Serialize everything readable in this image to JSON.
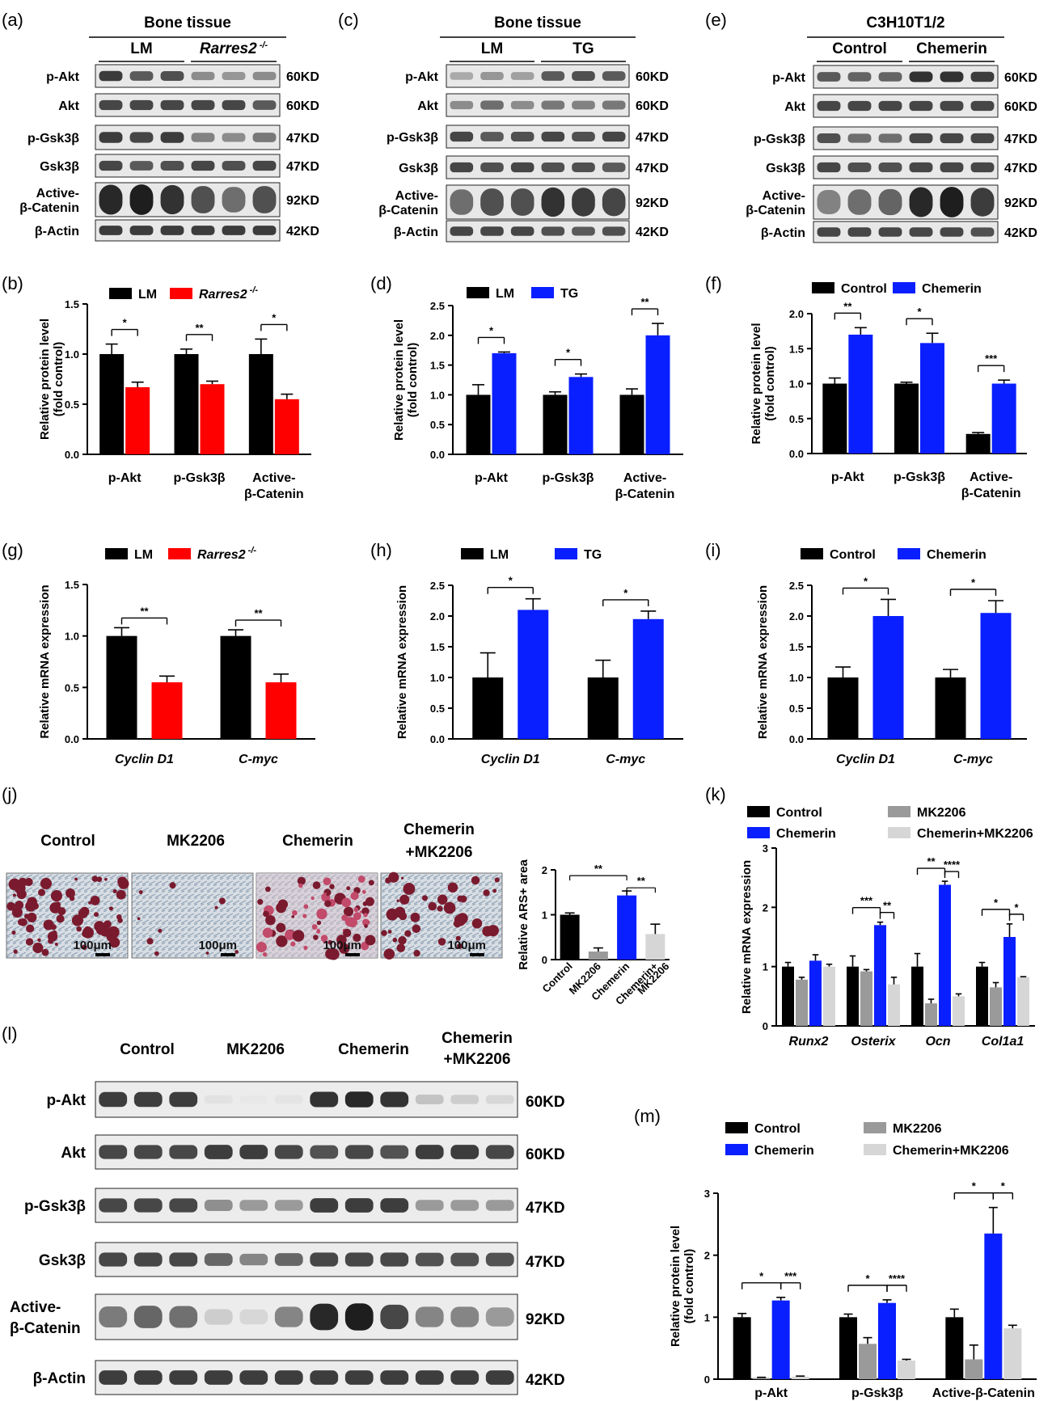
{
  "panels": {
    "a": {
      "letter": "(a)",
      "header": "Bone tissue",
      "groups": [
        "LM",
        "Rarres2 -/-"
      ],
      "rows": [
        "p-Akt",
        "Akt",
        "p-Gsk3β",
        "Gsk3β",
        "Active-β-Catenin",
        "β-Actin"
      ],
      "sizes": [
        "60KD",
        "60KD",
        "47KD",
        "47KD",
        "92KD",
        "42KD"
      ]
    },
    "c": {
      "letter": "(c)",
      "header": "Bone tissue",
      "groups": [
        "LM",
        "TG"
      ],
      "rows": [
        "p-Akt",
        "Akt",
        "p-Gsk3β",
        "Gsk3β",
        "Active-β-Catenin",
        "β-Actin"
      ],
      "sizes": [
        "60KD",
        "60KD",
        "47KD",
        "47KD",
        "92KD",
        "42KD"
      ]
    },
    "e": {
      "letter": "(e)",
      "header": "C3H10T1/2",
      "groups": [
        "Control",
        "Chemerin"
      ],
      "rows": [
        "p-Akt",
        "Akt",
        "p-Gsk3β",
        "Gsk3β",
        "Active-β-Catenin",
        "β-Actin"
      ],
      "sizes": [
        "60KD",
        "60KD",
        "47KD",
        "47KD",
        "92KD",
        "42KD"
      ]
    },
    "j": {
      "letter": "(j)",
      "conditions": [
        "Control",
        "MK2206",
        "Chemerin",
        "Chemerin +MK2206"
      ],
      "scale_bar": "100μm"
    },
    "l": {
      "letter": "(l)",
      "conditions": [
        "Control",
        "MK2206",
        "Chemerin",
        "Chemerin +MK2206"
      ],
      "rows": [
        "p-Akt",
        "Akt",
        "p-Gsk3β",
        "Gsk3β",
        "Active-β-Catenin",
        "β-Actin"
      ],
      "sizes": [
        "60KD",
        "60KD",
        "47KD",
        "47KD",
        "92KD",
        "42KD"
      ]
    }
  },
  "colors": {
    "black": "#000000",
    "red": "#ff0000",
    "blue": "#0a1fff",
    "gray": "#9a9a9a",
    "lightgray": "#d6d6d6"
  },
  "chart_data": [
    {
      "id": "b",
      "letter": "(b)",
      "type": "bar",
      "ylabel": "Relative protein level (fold control)",
      "ylim": [
        0,
        1.5
      ],
      "ticks": [
        0.0,
        0.5,
        1.0,
        1.5
      ],
      "categories": [
        "p-Akt",
        "p-Gsk3β",
        "Active-β-Catenin"
      ],
      "series": [
        {
          "name": "LM",
          "color": "#000000",
          "values": [
            1.0,
            1.0,
            1.0
          ],
          "errors": [
            0.1,
            0.05,
            0.15
          ]
        },
        {
          "name": "Rarres2 -/-",
          "color": "#ff0000",
          "values": [
            0.67,
            0.7,
            0.55
          ],
          "errors": [
            0.05,
            0.03,
            0.05
          ]
        }
      ],
      "significance": [
        "*",
        "**",
        "*"
      ]
    },
    {
      "id": "d",
      "letter": "(d)",
      "type": "bar",
      "ylabel": "Relative protein level (fold control)",
      "ylim": [
        0,
        2.5
      ],
      "ticks": [
        0.0,
        0.5,
        1.0,
        1.5,
        2.0,
        2.5
      ],
      "categories": [
        "p-Akt",
        "p-Gsk3β",
        "Active-β-Catenin"
      ],
      "series": [
        {
          "name": "LM",
          "color": "#000000",
          "values": [
            1.0,
            1.0,
            1.0
          ],
          "errors": [
            0.17,
            0.05,
            0.1
          ]
        },
        {
          "name": "TG",
          "color": "#0a1fff",
          "values": [
            1.7,
            1.3,
            2.0
          ],
          "errors": [
            0.02,
            0.05,
            0.2
          ]
        }
      ],
      "significance": [
        "*",
        "*",
        "**"
      ]
    },
    {
      "id": "f",
      "letter": "(f)",
      "type": "bar",
      "ylabel": "Relative protein level (fold control)",
      "ylim": [
        0,
        2.0
      ],
      "ticks": [
        0.0,
        0.5,
        1.0,
        1.5,
        2.0
      ],
      "categories": [
        "p-Akt",
        "p-Gsk3β",
        "Active-β-Catenin"
      ],
      "series": [
        {
          "name": "Control",
          "color": "#000000",
          "values": [
            1.0,
            1.0,
            0.28
          ],
          "errors": [
            0.08,
            0.02,
            0.02
          ]
        },
        {
          "name": "Chemerin",
          "color": "#0a1fff",
          "values": [
            1.7,
            1.58,
            1.0
          ],
          "errors": [
            0.1,
            0.14,
            0.05
          ]
        }
      ],
      "significance": [
        "**",
        "*",
        "***"
      ]
    },
    {
      "id": "g",
      "letter": "(g)",
      "type": "bar",
      "ylabel": "Relative mRNA expression",
      "ylim": [
        0,
        1.5
      ],
      "ticks": [
        0.0,
        0.5,
        1.0,
        1.5
      ],
      "categories": [
        "Cyclin D1",
        "C-myc"
      ],
      "series": [
        {
          "name": "LM",
          "color": "#000000",
          "values": [
            1.0,
            1.0
          ],
          "errors": [
            0.08,
            0.06
          ]
        },
        {
          "name": "Rarres2 -/-",
          "color": "#ff0000",
          "values": [
            0.55,
            0.55
          ],
          "errors": [
            0.06,
            0.08
          ]
        }
      ],
      "significance": [
        "**",
        "**"
      ]
    },
    {
      "id": "h",
      "letter": "(h)",
      "type": "bar",
      "ylabel": "Relative mRNA expression",
      "ylim": [
        0,
        2.5
      ],
      "ticks": [
        0.0,
        0.5,
        1.0,
        1.5,
        2.0,
        2.5
      ],
      "categories": [
        "Cyclin D1",
        "C-myc"
      ],
      "series": [
        {
          "name": "LM",
          "color": "#000000",
          "values": [
            1.0,
            1.0
          ],
          "errors": [
            0.4,
            0.28
          ]
        },
        {
          "name": "TG",
          "color": "#0a1fff",
          "values": [
            2.1,
            1.95
          ],
          "errors": [
            0.18,
            0.13
          ]
        }
      ],
      "significance": [
        "*",
        "*"
      ]
    },
    {
      "id": "i",
      "letter": "(i)",
      "type": "bar",
      "ylabel": "Relative mRNA expression",
      "ylim": [
        0,
        2.5
      ],
      "ticks": [
        0.0,
        0.5,
        1.0,
        1.5,
        2.0,
        2.5
      ],
      "categories": [
        "Cyclin D1",
        "C-myc"
      ],
      "series": [
        {
          "name": "Control",
          "color": "#000000",
          "values": [
            1.0,
            1.0
          ],
          "errors": [
            0.17,
            0.13
          ]
        },
        {
          "name": "Chemerin",
          "color": "#0a1fff",
          "values": [
            2.0,
            2.05
          ],
          "errors": [
            0.27,
            0.2
          ]
        }
      ],
      "significance": [
        "*",
        "*"
      ]
    },
    {
      "id": "j_chart",
      "type": "bar",
      "ylabel": "Relative ARS+ area",
      "ylim": [
        0,
        2.0
      ],
      "ticks": [
        0,
        1,
        2
      ],
      "categories": [
        "Control",
        "MK2206",
        "Chemerin",
        "Chemerin+ MK2206"
      ],
      "series": [
        {
          "name": "ARS+ area",
          "colors": [
            "#000000",
            "#9a9a9a",
            "#0a1fff",
            "#d6d6d6"
          ],
          "values": [
            1.0,
            0.18,
            1.43,
            0.57
          ],
          "errors": [
            0.04,
            0.08,
            0.1,
            0.22
          ]
        }
      ],
      "significance": [
        "**",
        "**"
      ]
    },
    {
      "id": "k",
      "letter": "(k)",
      "type": "bar",
      "ylabel": "Relative mRNA expression",
      "ylim": [
        0,
        3
      ],
      "ticks": [
        0,
        1,
        2,
        3
      ],
      "categories": [
        "Runx2",
        "Osterix",
        "Ocn",
        "Col1a1"
      ],
      "series": [
        {
          "name": "Control",
          "color": "#000000",
          "values": [
            1.0,
            1.0,
            1.0,
            1.0
          ],
          "errors": [
            0.07,
            0.18,
            0.22,
            0.07
          ]
        },
        {
          "name": "MK2206",
          "color": "#9a9a9a",
          "values": [
            0.78,
            0.92,
            0.38,
            0.65
          ],
          "errors": [
            0.04,
            0.03,
            0.07,
            0.08
          ]
        },
        {
          "name": "Chemerin",
          "color": "#0a1fff",
          "values": [
            1.1,
            1.7,
            2.38,
            1.5
          ],
          "errors": [
            0.1,
            0.05,
            0.06,
            0.22
          ]
        },
        {
          "name": "Chemerin+MK2206",
          "color": "#d6d6d6",
          "values": [
            1.0,
            0.7,
            0.5,
            0.82
          ],
          "errors": [
            0.04,
            0.12,
            0.04,
            0.01
          ]
        }
      ],
      "significance": [
        "***",
        "**",
        "**",
        "****",
        "*",
        "*"
      ]
    },
    {
      "id": "m",
      "letter": "(m)",
      "type": "bar",
      "ylabel": "Relative protein level (fold control)",
      "ylim": [
        0,
        3
      ],
      "ticks": [
        0,
        1,
        2,
        3
      ],
      "categories": [
        "p-Akt",
        "p-Gsk3β",
        "Active-β-Catenin"
      ],
      "series": [
        {
          "name": "Control",
          "color": "#000000",
          "values": [
            1.0,
            1.0,
            1.0
          ],
          "errors": [
            0.06,
            0.05,
            0.13
          ]
        },
        {
          "name": "MK2206",
          "color": "#9a9a9a",
          "values": [
            0.02,
            0.57,
            0.32
          ],
          "errors": [
            0.01,
            0.1,
            0.23
          ]
        },
        {
          "name": "Chemerin",
          "color": "#0a1fff",
          "values": [
            1.27,
            1.23,
            2.35
          ],
          "errors": [
            0.05,
            0.05,
            0.42
          ]
        },
        {
          "name": "Chemerin+MK2206",
          "color": "#d6d6d6",
          "values": [
            0.04,
            0.3,
            0.82
          ],
          "errors": [
            0.01,
            0.02,
            0.05
          ]
        }
      ],
      "significance": [
        "*",
        "***",
        "*",
        "****",
        "*",
        "*"
      ]
    }
  ]
}
